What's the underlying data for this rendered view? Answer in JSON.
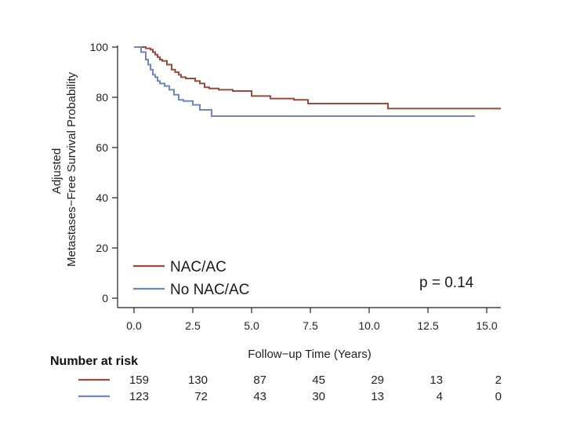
{
  "chart_data": {
    "type": "line",
    "step": true,
    "xlabel": "Follow−up Time (Years)",
    "ylabel_lines": [
      "Adjusted",
      "Metastases−Free Survival Probability"
    ],
    "xlim": [
      0,
      15.6
    ],
    "ylim": [
      0,
      100
    ],
    "x_ticks": [
      "0.0",
      "2.5",
      "5.0",
      "7.5",
      "10.0",
      "12.5",
      "15.0"
    ],
    "x_tick_values": [
      0,
      2.5,
      5,
      7.5,
      10,
      12.5,
      15
    ],
    "y_ticks": [
      "0",
      "20",
      "40",
      "60",
      "80",
      "100"
    ],
    "y_tick_values": [
      0,
      20,
      40,
      60,
      80,
      100
    ],
    "grid": false,
    "legend_position": "bottom-left",
    "annotation": "p = 0.14",
    "series": [
      {
        "name": "NAC/AC",
        "color": "#9c4a3a",
        "x": [
          0,
          0.5,
          0.7,
          0.8,
          0.9,
          1.0,
          1.1,
          1.2,
          1.4,
          1.6,
          1.75,
          1.9,
          2.0,
          2.2,
          2.6,
          2.8,
          3.0,
          3.2,
          3.6,
          4.2,
          5.0,
          5.8,
          6.8,
          7.4,
          8.5,
          10.8,
          15.6
        ],
        "y": [
          100,
          99.5,
          99,
          98,
          97,
          96,
          95,
          94.5,
          93,
          91,
          90,
          89,
          88,
          87.5,
          86.5,
          85.5,
          84,
          83.5,
          83,
          82.5,
          80.5,
          79.5,
          79,
          77.5,
          77.5,
          75.5,
          75.5
        ]
      },
      {
        "name": "No NAC/AC",
        "color": "#6f86c6",
        "x": [
          0,
          0.3,
          0.5,
          0.6,
          0.7,
          0.8,
          0.9,
          1.0,
          1.1,
          1.3,
          1.5,
          1.7,
          1.9,
          2.1,
          2.5,
          2.8,
          3.3,
          14.5
        ],
        "y": [
          100,
          98,
          95,
          93,
          91,
          89,
          88,
          86.5,
          85.5,
          84.5,
          83,
          81,
          79,
          78.5,
          77,
          75,
          72.5,
          72.5
        ]
      }
    ],
    "risk_table": {
      "title": "Number at risk",
      "rows": [
        {
          "color": "#9c4a3a",
          "values": [
            "159",
            "130",
            "87",
            "45",
            "29",
            "13",
            "2"
          ]
        },
        {
          "color": "#6f86c6",
          "values": [
            "123",
            "72",
            "43",
            "30",
            "13",
            "4",
            "0"
          ]
        }
      ]
    }
  }
}
